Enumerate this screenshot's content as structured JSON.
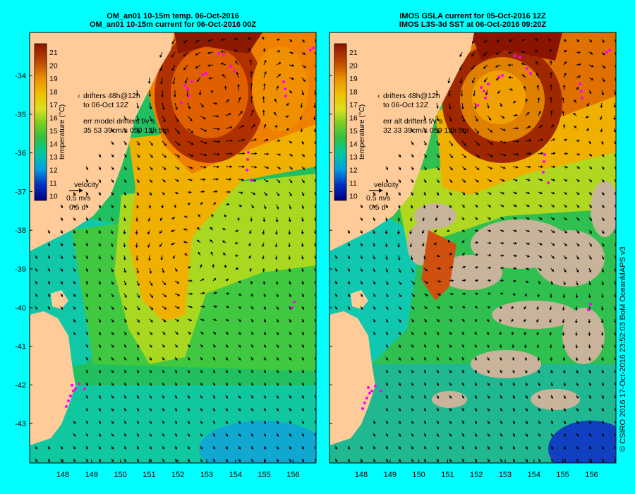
{
  "panels": [
    {
      "title_line1": "OM_an01 10-15m temp. 06-Oct-2016",
      "title_line2": "OM_an01 10-15m current for 06-Oct-2016 00Z",
      "drifter_line1": "drifters 48h@12h",
      "drifter_line2": "to 06-Oct 12Z",
      "err_line1": "err model drifters f/v s",
      "err_line2": "35 53 39cm/s 059 12h 5m",
      "velocity_label": "velocity",
      "velocity_scale": "0.5 m/s",
      "velocity_time": "0.5 d"
    },
    {
      "title_line1": "IMOS GSLA current for 05-Oct-2016 12Z",
      "title_line2": "IMOS L3S-3d SST at 06-Oct-2016 09:20Z",
      "drifter_line1": "drifters 48h@12h",
      "drifter_line2": "to 06-Oct 12Z",
      "err_line1": "err alt drifters f/v s",
      "err_line2": "32 33 39cm/s 059 12h 5m",
      "velocity_label": "velocity",
      "velocity_scale": "0.5 m/s",
      "velocity_time": "0.5 d"
    }
  ],
  "colorbar": {
    "label": "temperature (°C)",
    "ticks": [
      "21",
      "20",
      "19",
      "18",
      "17",
      "16",
      "15",
      "14",
      "13",
      "12",
      "11",
      "10"
    ]
  },
  "axes": {
    "lon_ticks": [
      "148",
      "149",
      "150",
      "151",
      "152",
      "153",
      "154",
      "155",
      "156"
    ],
    "lat_ticks": [
      "-34",
      "-35",
      "-36",
      "-37",
      "-38",
      "-39",
      "-40",
      "-41",
      "-42",
      "-43"
    ]
  },
  "credit": "© CSIRO 2016  17-Oct-2016 23:52:03 BoM OceanMAPS v3",
  "colors": {
    "background": "#00ffff",
    "land": "#ffcc99",
    "warm": "#8b1a00",
    "cool": "#00a0c8",
    "drifter": "#ff00ff",
    "missing": "#c8b49a"
  }
}
